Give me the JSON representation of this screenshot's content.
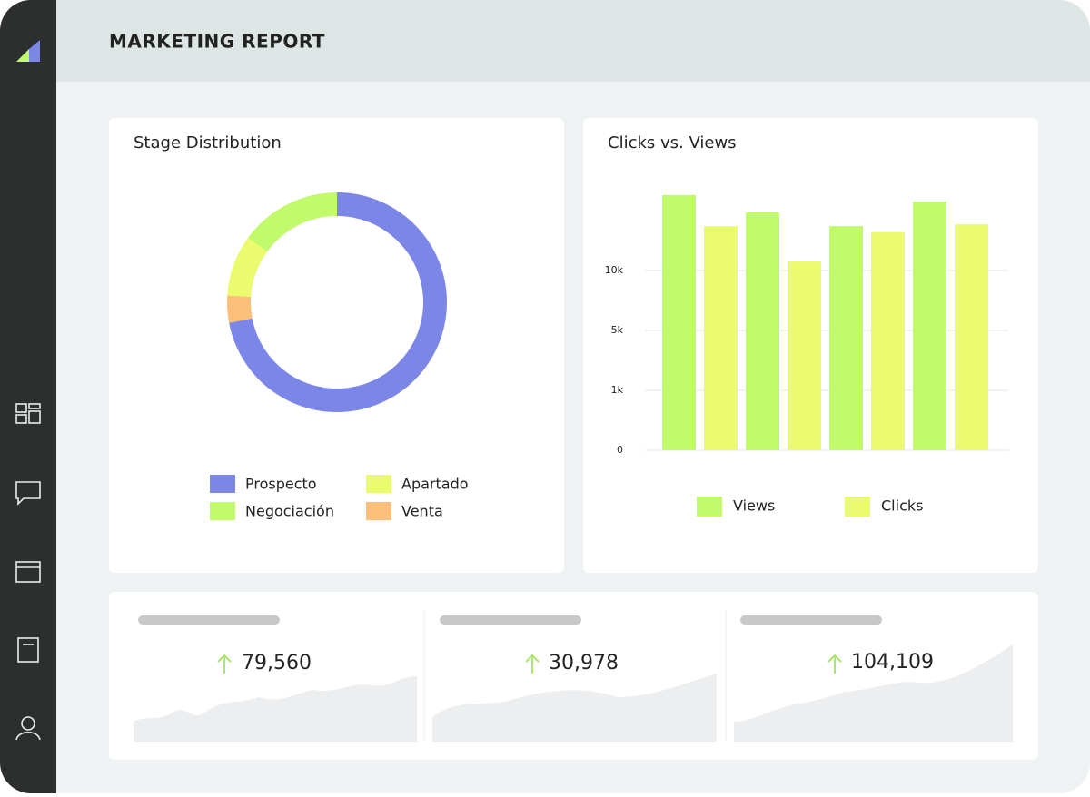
{
  "header": {
    "title": "MARKETING REPORT"
  },
  "chart_data": [
    {
      "type": "pie",
      "title": "Stage Distribution",
      "categories": [
        "Prospecto",
        "Venta",
        "Apartado",
        "Negociación"
      ],
      "values": [
        72,
        4,
        9,
        15
      ],
      "colors": [
        "#7b86e6",
        "#fbbf7a",
        "#eafc6e",
        "#c1fa6a"
      ]
    },
    {
      "type": "bar",
      "title": "Clicks vs. Views",
      "categories": [
        null,
        null,
        null,
        null
      ],
      "series": [
        {
          "name": "Views",
          "color": "#c1fa6a",
          "values": [
            16300,
            14850,
            13700,
            15750
          ]
        },
        {
          "name": "Clicks",
          "color": "#eafc6e",
          "values": [
            13700,
            10750,
            13200,
            13850
          ]
        }
      ],
      "ylim": [
        0,
        17500
      ],
      "yticks": [
        0,
        {
          "value": 1000,
          "label": "1k"
        },
        {
          "value": 5000,
          "label": "5k"
        },
        {
          "value": 10000,
          "label": "10k"
        }
      ],
      "grid": true
    }
  ],
  "stats": [
    {
      "value": "79,560"
    },
    {
      "value": "30,978"
    },
    {
      "value": "104,109"
    }
  ]
}
